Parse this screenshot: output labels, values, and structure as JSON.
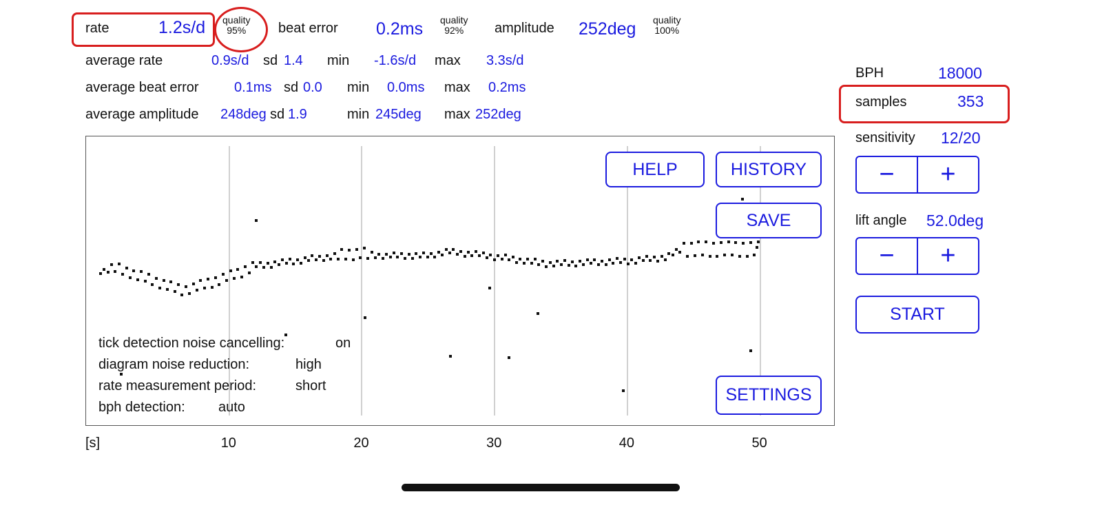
{
  "top": {
    "rate_label": "rate",
    "rate": "1.2s/d",
    "quality_label": "quality",
    "rate_quality": "95%",
    "beat_error_label": "beat error",
    "beat_error": "0.2ms",
    "beat_quality": "92%",
    "amplitude_label": "amplitude",
    "amplitude": "252deg",
    "amp_quality": "100%"
  },
  "stats": [
    {
      "label": "average rate",
      "avg": "0.9s/d",
      "sd_label": "sd",
      "sd": "1.4",
      "min_label": "min",
      "min": "-1.6s/d",
      "max_label": "max",
      "max": "3.3s/d"
    },
    {
      "label": "average beat error",
      "avg": "0.1ms",
      "sd_label": "sd",
      "sd": "0.0",
      "min_label": "min",
      "min": "0.0ms",
      "max_label": "max",
      "max": "0.2ms"
    },
    {
      "label": "average amplitude",
      "avg": "248deg",
      "sd_label": "sd",
      "sd": "1.9",
      "min_label": "min",
      "min": "245deg",
      "max_label": "max",
      "max": "252deg"
    }
  ],
  "side": {
    "bph_label": "BPH",
    "bph": "18000",
    "samples_label": "samples",
    "samples": "353",
    "sensitivity_label": "sensitivity",
    "sensitivity": "12/20",
    "lift_label": "lift angle",
    "lift": "52.0deg",
    "minus": "−",
    "plus": "+",
    "start": "START"
  },
  "buttons": {
    "help": "HELP",
    "history": "HISTORY",
    "save": "SAVE",
    "settings": "SETTINGS"
  },
  "settings": [
    {
      "label": "tick detection noise cancelling:",
      "value": "on"
    },
    {
      "label": "diagram noise reduction:",
      "value": "high"
    },
    {
      "label": "rate measurement period:",
      "value": "short"
    },
    {
      "label": "bph detection:",
      "value": "auto"
    }
  ],
  "axis": {
    "unit": "[s]",
    "ticks": [
      "10",
      "20",
      "30",
      "40",
      "50"
    ]
  },
  "colors": {
    "accent": "#1a1adf",
    "highlight": "#d81e1e"
  }
}
